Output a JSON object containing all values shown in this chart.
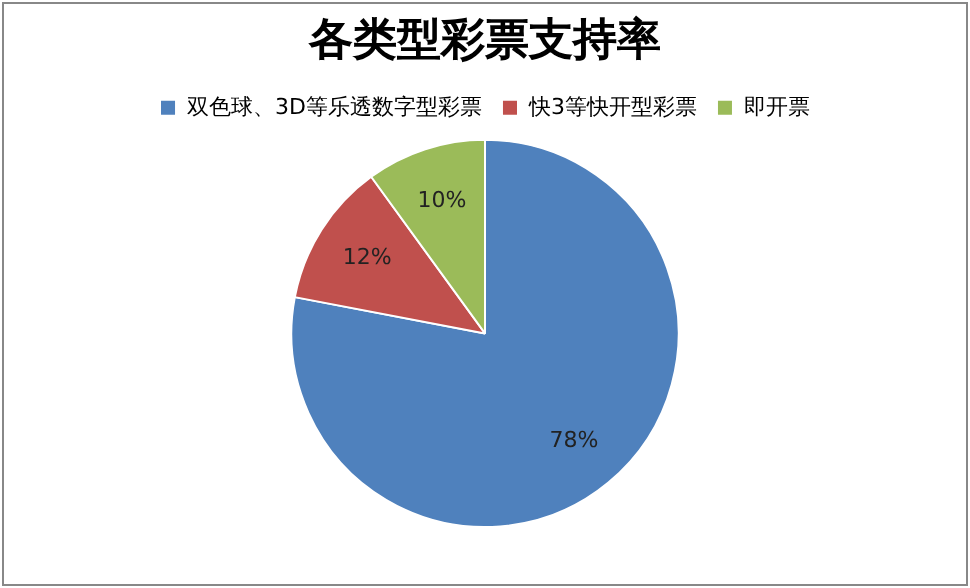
{
  "chart_data": {
    "type": "pie",
    "title": "各类型彩票支持率",
    "categories": [
      "双色球、3D等乐透数字型彩票",
      "快3等快开型彩票",
      "即开票"
    ],
    "values": [
      78,
      12,
      10
    ],
    "colors": [
      "#4f81bd",
      "#c0504d",
      "#9bbb59"
    ],
    "value_labels": [
      "78%",
      "12%",
      "10%"
    ],
    "legend": "top"
  }
}
